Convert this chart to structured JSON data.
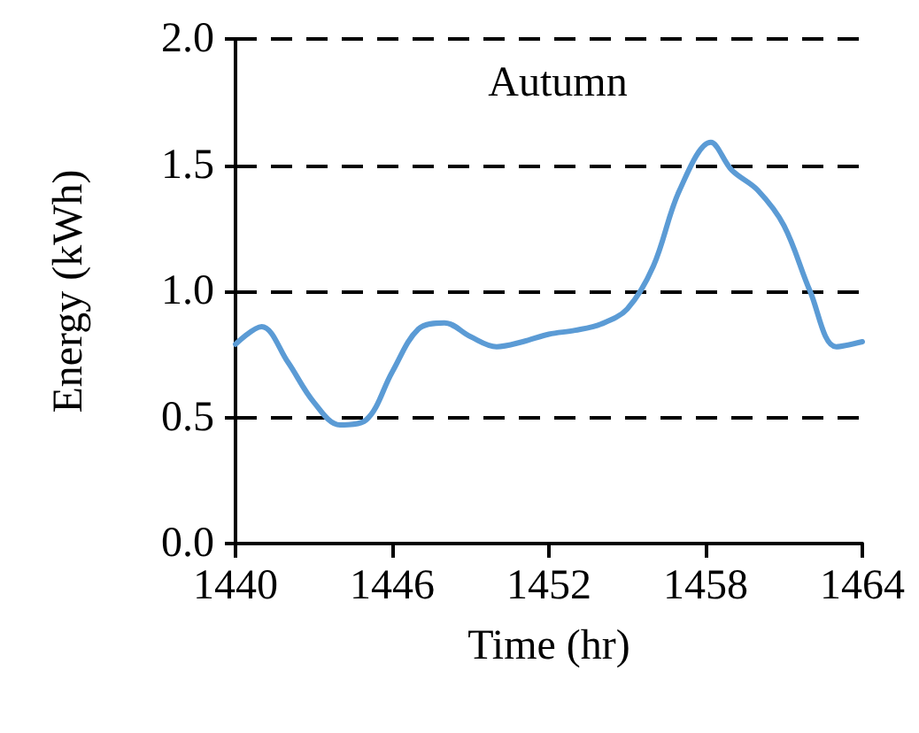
{
  "chart_data": {
    "type": "line",
    "title": "Autumn",
    "xlabel": "Time (hr)",
    "ylabel": "Energy (kWh)",
    "x": [
      1440,
      1441,
      1442,
      1443,
      1444,
      1445,
      1446,
      1447,
      1448,
      1449,
      1450,
      1451,
      1452,
      1453,
      1454,
      1455,
      1456,
      1457,
      1458.2,
      1459,
      1460,
      1461,
      1462,
      1463,
      1464
    ],
    "series": [
      {
        "color": "#5b9bd5",
        "values": [
          0.79,
          0.86,
          0.72,
          0.56,
          0.47,
          0.49,
          0.68,
          0.85,
          0.875,
          0.82,
          0.78,
          0.8,
          0.83,
          0.845,
          0.87,
          0.93,
          1.1,
          1.4,
          1.59,
          1.48,
          1.4,
          1.26,
          1.0,
          0.78,
          0.8
        ]
      }
    ],
    "xlim": [
      1440,
      1464
    ],
    "xticks": [
      1440,
      1446,
      1452,
      1458,
      1464
    ],
    "ylim": [
      0,
      2
    ],
    "yticks": [
      {
        "value": 0,
        "label": "0.0"
      },
      0.5,
      {
        "value": 1,
        "label": "1.0"
      },
      1.5,
      {
        "value": 2,
        "label": "2.0"
      }
    ],
    "grid": "y",
    "marker": "none",
    "line_style": "solid"
  }
}
